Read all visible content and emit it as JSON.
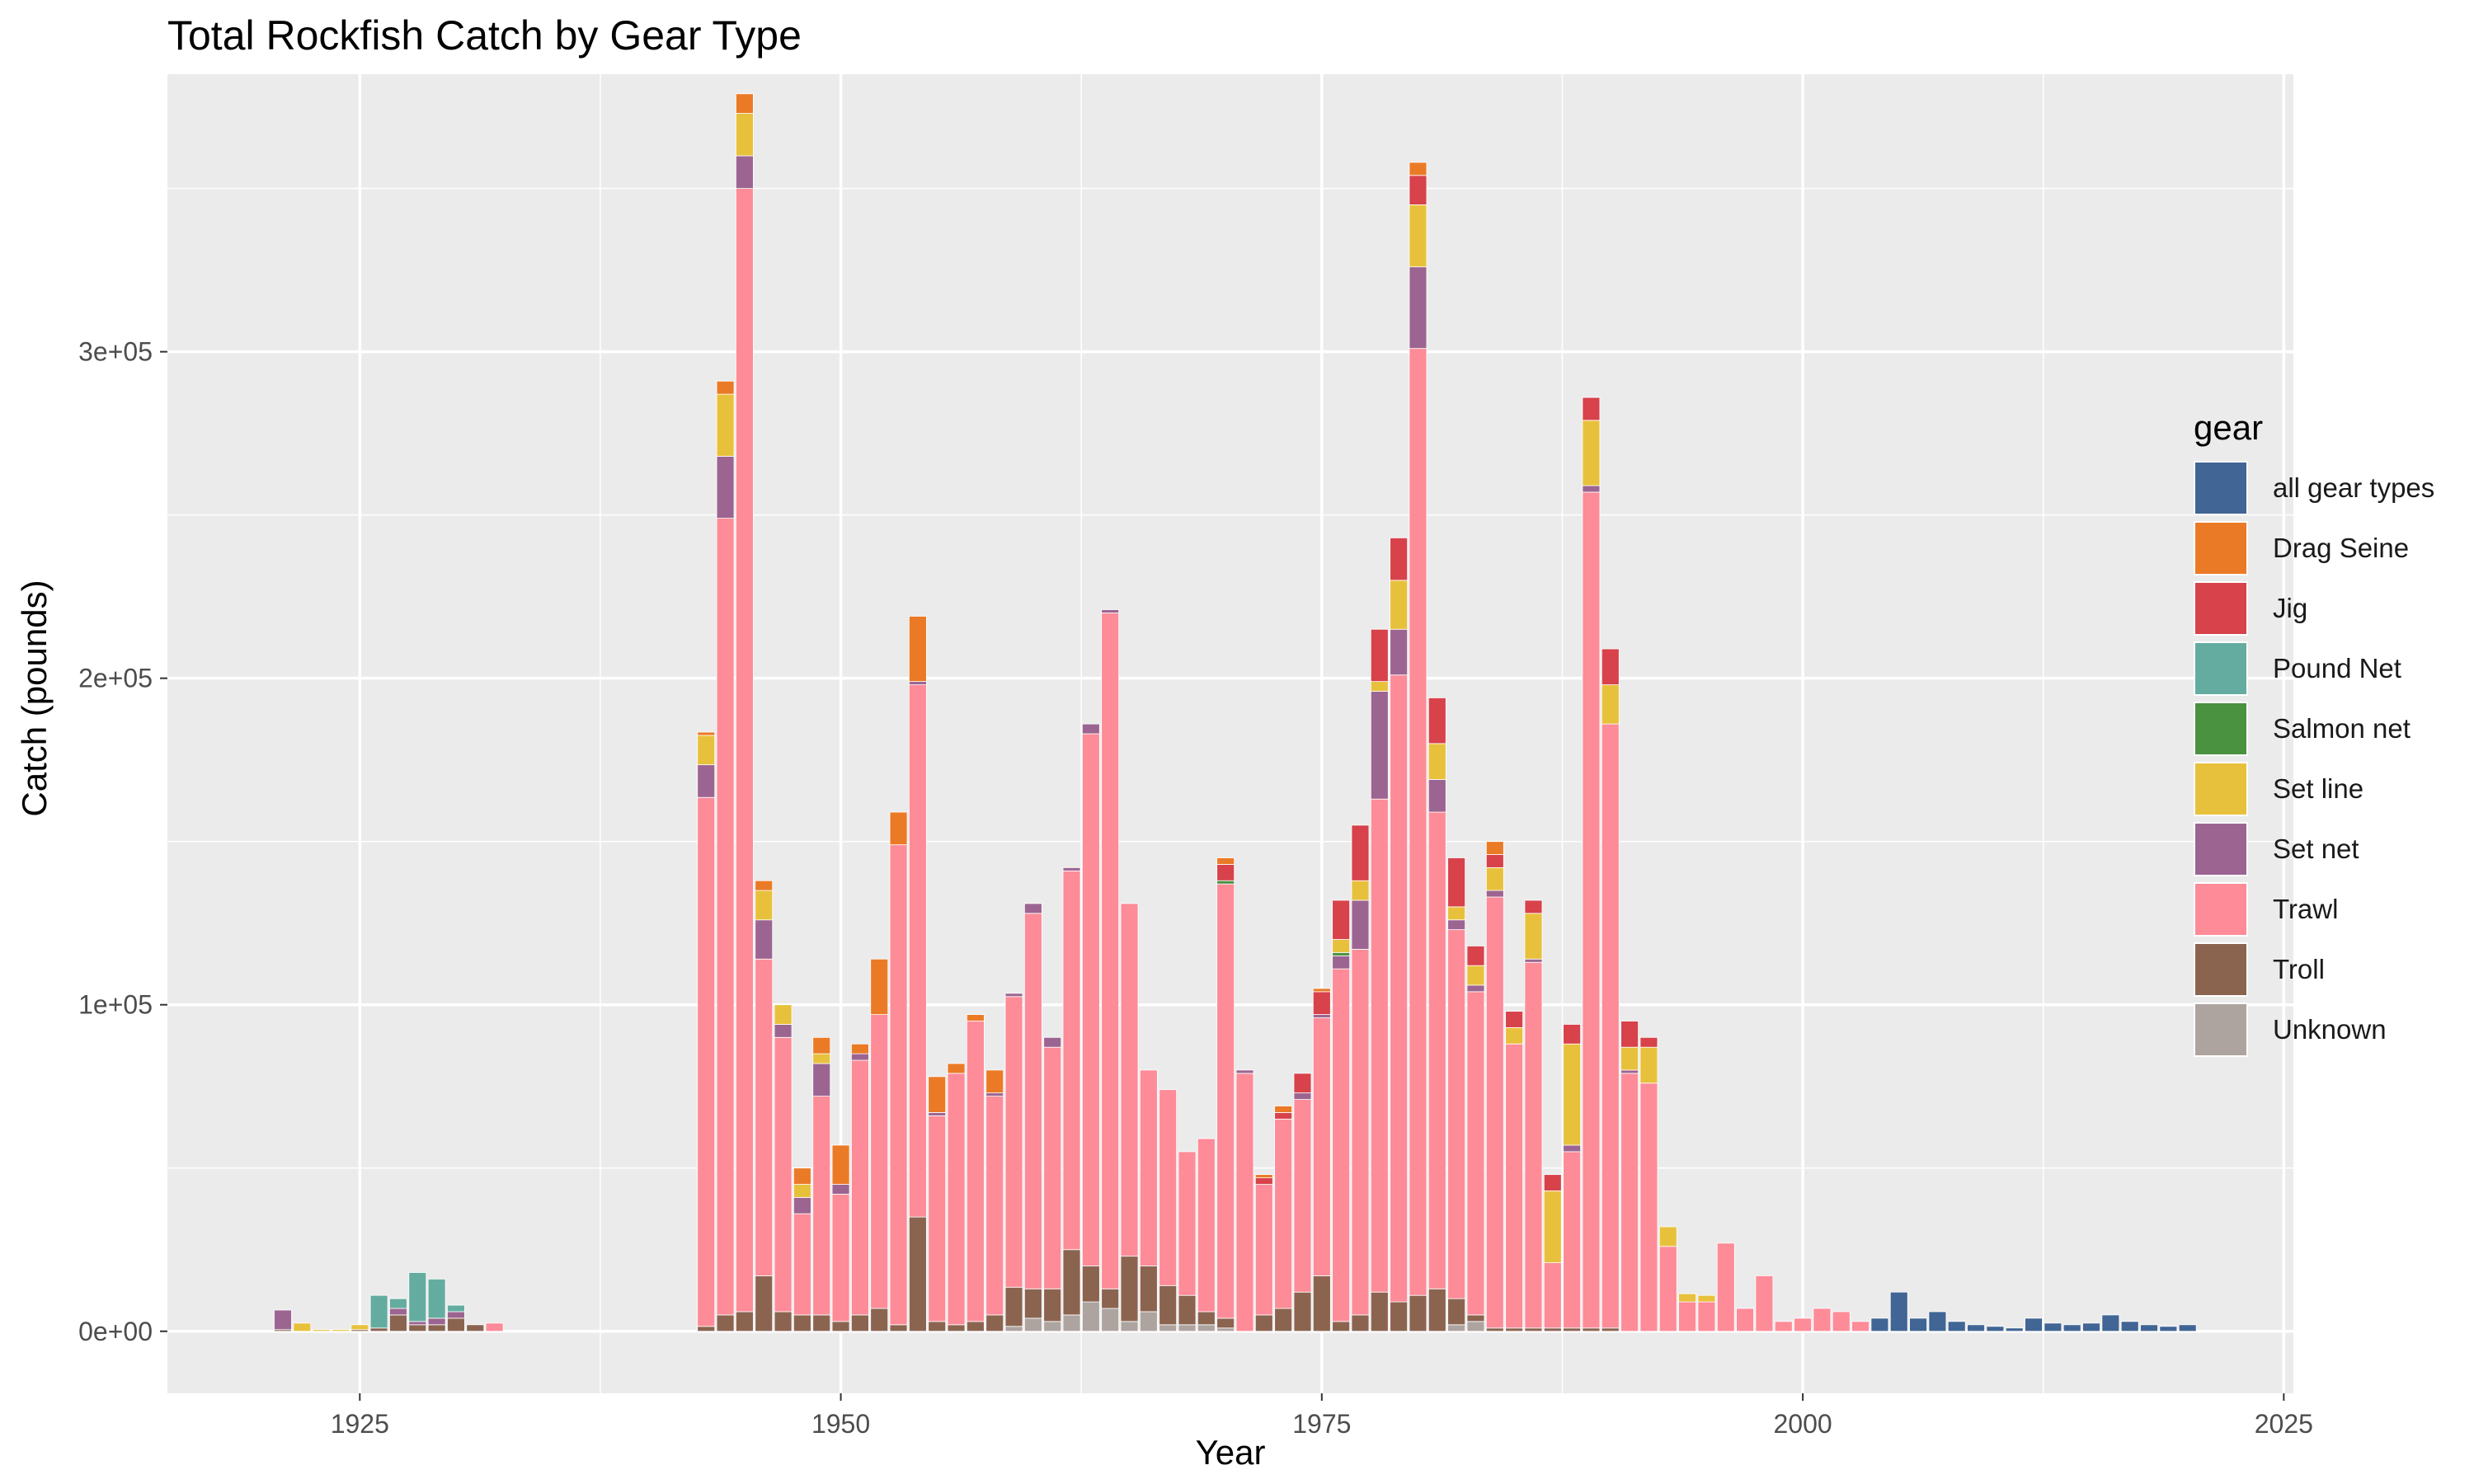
{
  "chart_data": {
    "type": "bar",
    "stacked": true,
    "title": "Total Rockfish Catch by Gear Type",
    "xlabel": "Year",
    "ylabel": "Catch (pounds)",
    "xlim": [
      1915,
      2025.5
    ],
    "ylim": [
      -19000,
      385000
    ],
    "x_ticks": [
      1925,
      1950,
      1975,
      2000,
      2025
    ],
    "x_minor_ticks": [
      1937.5,
      1962.5,
      1987.5,
      2012.5
    ],
    "y_ticks": [
      0,
      100000,
      200000,
      300000
    ],
    "y_tick_labels": [
      "0e+00",
      "1e+05",
      "2e+05",
      "3e+05"
    ],
    "y_minor_ticks": [
      50000,
      150000,
      250000,
      350000
    ],
    "grid": true,
    "legend_position": "right",
    "legend_title": "gear",
    "categories": [
      1921,
      1922,
      1923,
      1924,
      1925,
      1926,
      1927,
      1928,
      1929,
      1930,
      1931,
      1932,
      1943,
      1944,
      1945,
      1946,
      1947,
      1948,
      1949,
      1950,
      1951,
      1952,
      1953,
      1954,
      1955,
      1956,
      1957,
      1958,
      1959,
      1960,
      1961,
      1962,
      1963,
      1964,
      1965,
      1966,
      1967,
      1968,
      1969,
      1970,
      1971,
      1972,
      1973,
      1974,
      1975,
      1976,
      1977,
      1978,
      1979,
      1980,
      1981,
      1982,
      1983,
      1984,
      1985,
      1986,
      1987,
      1988,
      1989,
      1990,
      1991,
      1992,
      1993,
      1994,
      1995,
      1996,
      1997,
      1998,
      1999,
      2000,
      2001,
      2002,
      2003,
      2004,
      2005,
      2006,
      2007,
      2008,
      2009,
      2010,
      2011,
      2012,
      2013,
      2014,
      2015,
      2016,
      2017,
      2018,
      2019,
      2020
    ],
    "series": [
      {
        "name": "Unknown",
        "color": "#ada49f",
        "values": [
          0,
          0,
          0,
          0,
          0,
          0,
          0,
          0,
          0,
          0,
          0,
          0,
          0,
          0,
          0,
          0,
          0,
          0,
          0,
          0,
          0,
          0,
          0,
          0,
          0,
          0,
          0,
          0,
          1500,
          4000,
          3000,
          5000,
          9000,
          7000,
          3000,
          6000,
          2000,
          2000,
          2000,
          1000,
          0,
          0,
          0,
          0,
          0,
          0,
          0,
          0,
          0,
          0,
          0,
          2000,
          3000,
          0,
          0,
          0,
          0,
          0,
          0,
          0,
          0,
          0,
          0,
          0,
          0,
          0,
          0,
          0,
          0,
          0,
          0,
          0,
          0,
          0,
          0,
          0,
          0,
          0,
          0,
          0,
          0,
          0,
          0,
          0,
          0,
          0,
          0,
          0,
          0,
          0
        ]
      },
      {
        "name": "Troll",
        "color": "#8b6450",
        "values": [
          500,
          0,
          0,
          0,
          500,
          1000,
          5000,
          2000,
          2000,
          4000,
          2000,
          0,
          1500,
          5000,
          6000,
          17000,
          6000,
          5000,
          5000,
          3000,
          5000,
          7000,
          2000,
          35000,
          3000,
          2000,
          3000,
          5000,
          12000,
          9000,
          10000,
          20000,
          11000,
          6000,
          20000,
          14000,
          12000,
          9000,
          4000,
          3000,
          0,
          5000,
          7000,
          12000,
          17000,
          3000,
          5000,
          12000,
          9000,
          11000,
          13000,
          8000,
          2000,
          1000,
          1000,
          1000,
          1000,
          1000,
          1000,
          1000,
          0,
          0,
          0,
          0,
          0,
          0,
          0,
          0,
          0,
          0,
          0,
          0,
          0,
          0,
          0,
          0,
          0,
          0,
          0,
          0,
          0,
          0,
          0,
          0,
          0,
          0,
          0,
          0,
          0,
          0
        ]
      },
      {
        "name": "Trawl",
        "color": "#fe8b98",
        "values": [
          0,
          0,
          0,
          0,
          0,
          0,
          0,
          0,
          0,
          0,
          0,
          2500,
          162000,
          244000,
          344000,
          97000,
          84000,
          31000,
          67000,
          39000,
          78000,
          90000,
          147000,
          163000,
          63000,
          77000,
          92000,
          67000,
          89000,
          115000,
          74000,
          116000,
          163000,
          207000,
          108000,
          60000,
          60000,
          44000,
          53000,
          133000,
          79000,
          40000,
          58000,
          59000,
          79000,
          108000,
          112000,
          151000,
          192000,
          290000,
          146000,
          113000,
          99000,
          132000,
          87000,
          112000,
          20000,
          54000,
          256000,
          185000,
          79000,
          76000,
          26000,
          9000,
          9000,
          27000,
          7000,
          17000,
          3000,
          4000,
          7000,
          6000,
          3000,
          0,
          0,
          0,
          0,
          0,
          0,
          0,
          0,
          0,
          0,
          0,
          0,
          0,
          0,
          0,
          0,
          0
        ]
      },
      {
        "name": "Set net",
        "color": "#9c6591",
        "values": [
          6000,
          0,
          0,
          0,
          0,
          0,
          2000,
          1000,
          2000,
          2000,
          0,
          0,
          10000,
          19000,
          10000,
          12000,
          4000,
          5000,
          10000,
          3000,
          2000,
          0,
          0,
          1000,
          1000,
          0,
          0,
          1000,
          1000,
          3000,
          3000,
          1000,
          3000,
          1000,
          0,
          0,
          0,
          0,
          0,
          0,
          1000,
          0,
          0,
          2000,
          1000,
          4000,
          15000,
          33000,
          14000,
          25000,
          10000,
          3000,
          2000,
          2000,
          0,
          1000,
          0,
          2000,
          2000,
          0,
          1000,
          0,
          0,
          0,
          0,
          0,
          0,
          0,
          0,
          0,
          0,
          0,
          0,
          0,
          0,
          0,
          0,
          0,
          0,
          0,
          0,
          0,
          0,
          0,
          0,
          0,
          0,
          0,
          0,
          0
        ]
      },
      {
        "name": "Salmon net",
        "color": "#4a9140",
        "values": [
          0,
          0,
          0,
          0,
          0,
          0,
          0,
          0,
          0,
          0,
          0,
          0,
          0,
          0,
          0,
          0,
          0,
          0,
          0,
          0,
          0,
          0,
          0,
          0,
          0,
          0,
          0,
          0,
          0,
          0,
          0,
          0,
          0,
          0,
          0,
          0,
          0,
          0,
          0,
          1000,
          0,
          0,
          0,
          0,
          0,
          1000,
          0,
          0,
          0,
          0,
          0,
          0,
          0,
          0,
          0,
          0,
          0,
          0,
          0,
          0,
          0,
          0,
          0,
          0,
          0,
          0,
          0,
          0,
          0,
          0,
          0,
          0,
          0,
          0,
          0,
          0,
          0,
          0,
          0,
          0,
          0,
          0,
          0,
          0,
          0,
          0,
          0,
          0,
          0,
          0
        ]
      },
      {
        "name": "Pound Net",
        "color": "#65aca0",
        "values": [
          0,
          0,
          0,
          0,
          0,
          10000,
          3000,
          15000,
          12000,
          2000,
          0,
          0,
          0,
          0,
          0,
          0,
          0,
          0,
          0,
          0,
          0,
          0,
          0,
          0,
          0,
          0,
          0,
          0,
          0,
          0,
          0,
          0,
          0,
          0,
          0,
          0,
          0,
          0,
          0,
          0,
          0,
          0,
          0,
          0,
          0,
          0,
          0,
          0,
          0,
          0,
          0,
          0,
          0,
          0,
          0,
          0,
          0,
          0,
          0,
          0,
          0,
          0,
          0,
          0,
          0,
          0,
          0,
          0,
          0,
          0,
          0,
          0,
          0,
          0,
          0,
          0,
          0,
          0,
          0,
          0,
          0,
          0,
          0,
          0,
          0,
          0,
          0,
          0,
          0,
          0
        ]
      },
      {
        "name": "Set line",
        "color": "#e8c13c",
        "values": [
          0,
          2500,
          500,
          500,
          1500,
          0,
          0,
          0,
          0,
          0,
          0,
          0,
          9000,
          19000,
          13000,
          9000,
          6000,
          4000,
          3000,
          0,
          0,
          0,
          0,
          0,
          0,
          0,
          0,
          0,
          0,
          0,
          0,
          0,
          0,
          0,
          0,
          0,
          0,
          0,
          0,
          0,
          0,
          0,
          0,
          0,
          0,
          4000,
          6000,
          3000,
          15000,
          19000,
          11000,
          4000,
          6000,
          7000,
          5000,
          14000,
          22000,
          31000,
          20000,
          12000,
          7000,
          11000,
          6000,
          2500,
          2000,
          0,
          0,
          0,
          0,
          0,
          0,
          0,
          0,
          0,
          0,
          0,
          0,
          0,
          0,
          0,
          0,
          0,
          0,
          0,
          0,
          0,
          0,
          0,
          0,
          0
        ]
      },
      {
        "name": "Jig",
        "color": "#d7424b",
        "values": [
          0,
          0,
          0,
          0,
          0,
          0,
          0,
          0,
          0,
          0,
          0,
          0,
          0,
          0,
          0,
          0,
          0,
          0,
          0,
          0,
          0,
          0,
          0,
          0,
          0,
          0,
          0,
          0,
          0,
          0,
          0,
          0,
          0,
          0,
          0,
          0,
          0,
          0,
          0,
          5000,
          0,
          2000,
          2000,
          6000,
          7000,
          12000,
          17000,
          16000,
          13000,
          9000,
          14000,
          15000,
          6000,
          4000,
          5000,
          4000,
          5000,
          6000,
          7000,
          11000,
          8000,
          3000,
          0,
          0,
          0,
          0,
          0,
          0,
          0,
          0,
          0,
          0,
          0,
          0,
          0,
          0,
          0,
          0,
          0,
          0,
          0,
          0,
          0,
          0,
          0,
          0,
          0,
          0,
          0,
          0
        ]
      },
      {
        "name": "Drag Seine",
        "color": "#eb7a27",
        "values": [
          0,
          0,
          0,
          0,
          0,
          0,
          0,
          0,
          0,
          0,
          0,
          0,
          1000,
          4000,
          6000,
          3000,
          0,
          5000,
          5000,
          12000,
          3000,
          17000,
          10000,
          20000,
          11000,
          3000,
          2000,
          7000,
          0,
          0,
          0,
          0,
          0,
          0,
          0,
          0,
          0,
          0,
          0,
          2000,
          0,
          1000,
          2000,
          0,
          1000,
          0,
          0,
          0,
          0,
          4000,
          0,
          0,
          0,
          4000,
          0,
          0,
          0,
          0,
          0,
          0,
          0,
          0,
          0,
          0,
          0,
          0,
          0,
          0,
          0,
          0,
          0,
          0,
          0,
          0,
          0,
          0,
          0,
          0,
          0,
          0,
          0,
          0,
          0,
          0,
          0,
          0,
          0,
          0,
          0,
          0
        ]
      },
      {
        "name": "all gear types",
        "color": "#416594",
        "values": [
          0,
          0,
          0,
          0,
          0,
          0,
          0,
          0,
          0,
          0,
          0,
          0,
          0,
          0,
          0,
          0,
          0,
          0,
          0,
          0,
          0,
          0,
          0,
          0,
          0,
          0,
          0,
          0,
          0,
          0,
          0,
          0,
          0,
          0,
          0,
          0,
          0,
          0,
          0,
          0,
          0,
          0,
          0,
          0,
          0,
          0,
          0,
          0,
          0,
          0,
          0,
          0,
          0,
          0,
          0,
          0,
          0,
          0,
          0,
          0,
          0,
          0,
          0,
          0,
          0,
          0,
          0,
          0,
          0,
          0,
          0,
          0,
          0,
          4000,
          12000,
          4000,
          6000,
          3000,
          2000,
          1500,
          1000,
          4000,
          2500,
          2000,
          2500,
          5000,
          3000,
          2000,
          1500,
          2000
        ]
      }
    ]
  },
  "legend_order": [
    "all gear types",
    "Drag Seine",
    "Jig",
    "Pound Net",
    "Salmon net",
    "Set line",
    "Set net",
    "Trawl",
    "Troll",
    "Unknown"
  ]
}
